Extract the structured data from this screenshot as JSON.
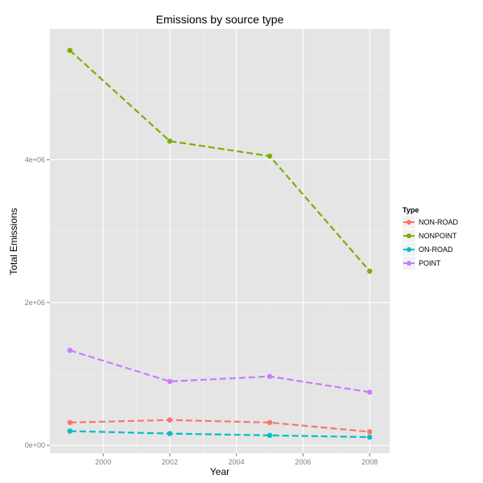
{
  "chart_data": {
    "type": "line",
    "title": "Emissions by source type",
    "xlabel": "Year",
    "ylabel": "Total Emissions",
    "x": [
      1999,
      2002,
      2005,
      2008
    ],
    "xlim": [
      1998.4,
      2008.6
    ],
    "ylim": [
      -110000,
      5830000
    ],
    "x_ticks": [
      2000,
      2002,
      2004,
      2006,
      2008
    ],
    "x_tick_labels": [
      "2000",
      "2002",
      "2004",
      "2006",
      "2008"
    ],
    "y_ticks": [
      0,
      2000000,
      4000000
    ],
    "y_tick_labels": [
      "0e+00",
      "2e+06",
      "4e+06"
    ],
    "grid": true,
    "legend": {
      "title": "Type",
      "position": "right"
    },
    "line_style": "dashed",
    "series": [
      {
        "name": "NON-ROAD",
        "color": "#F8766D",
        "values": [
          320000,
          355000,
          320000,
          190000
        ]
      },
      {
        "name": "NONPOINT",
        "color": "#7CAE00",
        "values": [
          5530000,
          4260000,
          4050000,
          2440000
        ]
      },
      {
        "name": "ON-ROAD",
        "color": "#00BFC4",
        "values": [
          200000,
          165000,
          140000,
          115000
        ]
      },
      {
        "name": "POINT",
        "color": "#C77CFF",
        "values": [
          1330000,
          895000,
          965000,
          745000
        ]
      }
    ]
  }
}
